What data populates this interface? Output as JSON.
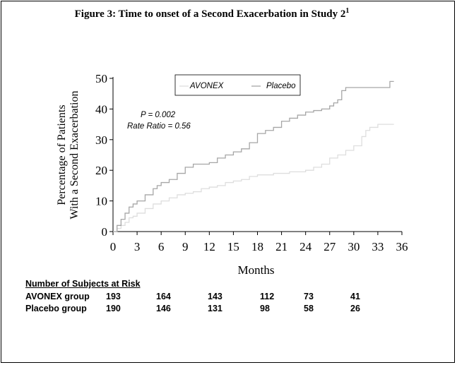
{
  "figure": {
    "title": "Figure 3: Time to onset of a Second Exacerbation in Study 2",
    "title_sup": "1"
  },
  "chart_data": {
    "type": "line",
    "ylabel_line1": "Percentage of Patients",
    "ylabel_line2": "With a Second Exacerbation",
    "xlabel": "Months",
    "xlim": [
      0,
      36
    ],
    "ylim": [
      0,
      50
    ],
    "xticks": [
      0,
      3,
      6,
      9,
      12,
      15,
      18,
      21,
      24,
      27,
      30,
      33,
      36
    ],
    "yticks": [
      0,
      10,
      20,
      30,
      40,
      50
    ],
    "legend_position": "top-center",
    "annotations": [
      "P = 0.002",
      "Rate Ratio = 0.56"
    ],
    "series": [
      {
        "name": "AVONEX",
        "color": "#dedede",
        "points": [
          [
            0,
            0
          ],
          [
            0.5,
            1
          ],
          [
            1,
            2
          ],
          [
            1.5,
            3
          ],
          [
            2,
            4.5
          ],
          [
            2.5,
            5
          ],
          [
            3,
            6
          ],
          [
            4,
            7.5
          ],
          [
            5,
            9
          ],
          [
            6,
            10
          ],
          [
            7,
            11
          ],
          [
            8,
            12
          ],
          [
            9,
            12.5
          ],
          [
            10,
            13
          ],
          [
            11,
            14
          ],
          [
            12,
            14.5
          ],
          [
            13,
            15
          ],
          [
            14,
            16
          ],
          [
            15,
            16.5
          ],
          [
            16,
            17
          ],
          [
            17,
            18
          ],
          [
            18,
            18.5
          ],
          [
            20,
            19
          ],
          [
            22,
            19.5
          ],
          [
            24,
            20
          ],
          [
            25,
            21
          ],
          [
            26,
            22
          ],
          [
            27,
            24
          ],
          [
            28,
            25
          ],
          [
            29,
            26.5
          ],
          [
            30,
            28
          ],
          [
            31,
            31
          ],
          [
            31.5,
            33
          ],
          [
            32,
            34
          ],
          [
            33,
            35
          ],
          [
            35,
            35
          ]
        ]
      },
      {
        "name": "Placebo",
        "color": "#a6a6a6",
        "points": [
          [
            0,
            0
          ],
          [
            0.5,
            2
          ],
          [
            1,
            4
          ],
          [
            1.5,
            6
          ],
          [
            2,
            8
          ],
          [
            2.5,
            9
          ],
          [
            3,
            10
          ],
          [
            4,
            12
          ],
          [
            5,
            14
          ],
          [
            5.5,
            15
          ],
          [
            6,
            16
          ],
          [
            7,
            17
          ],
          [
            8,
            19
          ],
          [
            9,
            21
          ],
          [
            10,
            22
          ],
          [
            12,
            22.5
          ],
          [
            13,
            24
          ],
          [
            14,
            25
          ],
          [
            15,
            26
          ],
          [
            16,
            27
          ],
          [
            17,
            29
          ],
          [
            18,
            32
          ],
          [
            19,
            33
          ],
          [
            20,
            34
          ],
          [
            21,
            36
          ],
          [
            22,
            37
          ],
          [
            23,
            38
          ],
          [
            24,
            39
          ],
          [
            25,
            39.5
          ],
          [
            26,
            40
          ],
          [
            27,
            41
          ],
          [
            27.5,
            42
          ],
          [
            28,
            43
          ],
          [
            28.5,
            46
          ],
          [
            29,
            47
          ],
          [
            34,
            47
          ],
          [
            34.5,
            49
          ],
          [
            35,
            49
          ]
        ]
      }
    ],
    "risk_table": {
      "header": "Number of Subjects at Risk",
      "rows": [
        {
          "label": "AVONEX group",
          "values": [
            "193",
            "164",
            "143",
            "112",
            "73",
            "41"
          ]
        },
        {
          "label": "Placebo group",
          "values": [
            "190",
            "146",
            "131",
            "98",
            "58",
            "26"
          ]
        }
      ]
    }
  }
}
